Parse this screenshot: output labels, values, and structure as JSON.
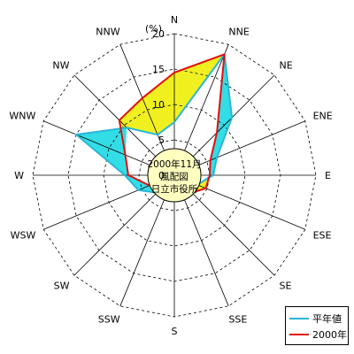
{
  "chart_data": {
    "type": "radar",
    "directions": [
      "N",
      "NNE",
      "NE",
      "ENE",
      "E",
      "ESE",
      "SE",
      "SSE",
      "S",
      "SSW",
      "SW",
      "WSW",
      "W",
      "WNW",
      "NW",
      "NNW"
    ],
    "unit_label": "(%)",
    "radial_ticks": [
      0,
      5,
      10,
      15,
      20
    ],
    "rmax": 20,
    "center_text": [
      "2000年11月",
      "風配図",
      "日立市役所"
    ],
    "colors": {
      "normal_line": "#29b6d6",
      "normal_fill": "#33dde6",
      "year_line": "#e01010",
      "year_fill": "#f0f020",
      "center_fill": "#ffffc0"
    },
    "series": [
      {
        "name": "平年値",
        "values": [
          7.5,
          18.5,
          11.5,
          6.5,
          5.5,
          3.5,
          2.8,
          2.5,
          3.2,
          3.0,
          3.5,
          5.5,
          7.0,
          15.0,
          9.5,
          6.2
        ]
      },
      {
        "name": "2000年",
        "values": [
          14.5,
          18.5,
          8.5,
          5.5,
          5.0,
          4.8,
          3.5,
          2.5,
          3.0,
          2.5,
          3.0,
          3.8,
          6.5,
          7.5,
          11.0,
          11.8
        ]
      }
    ]
  }
}
